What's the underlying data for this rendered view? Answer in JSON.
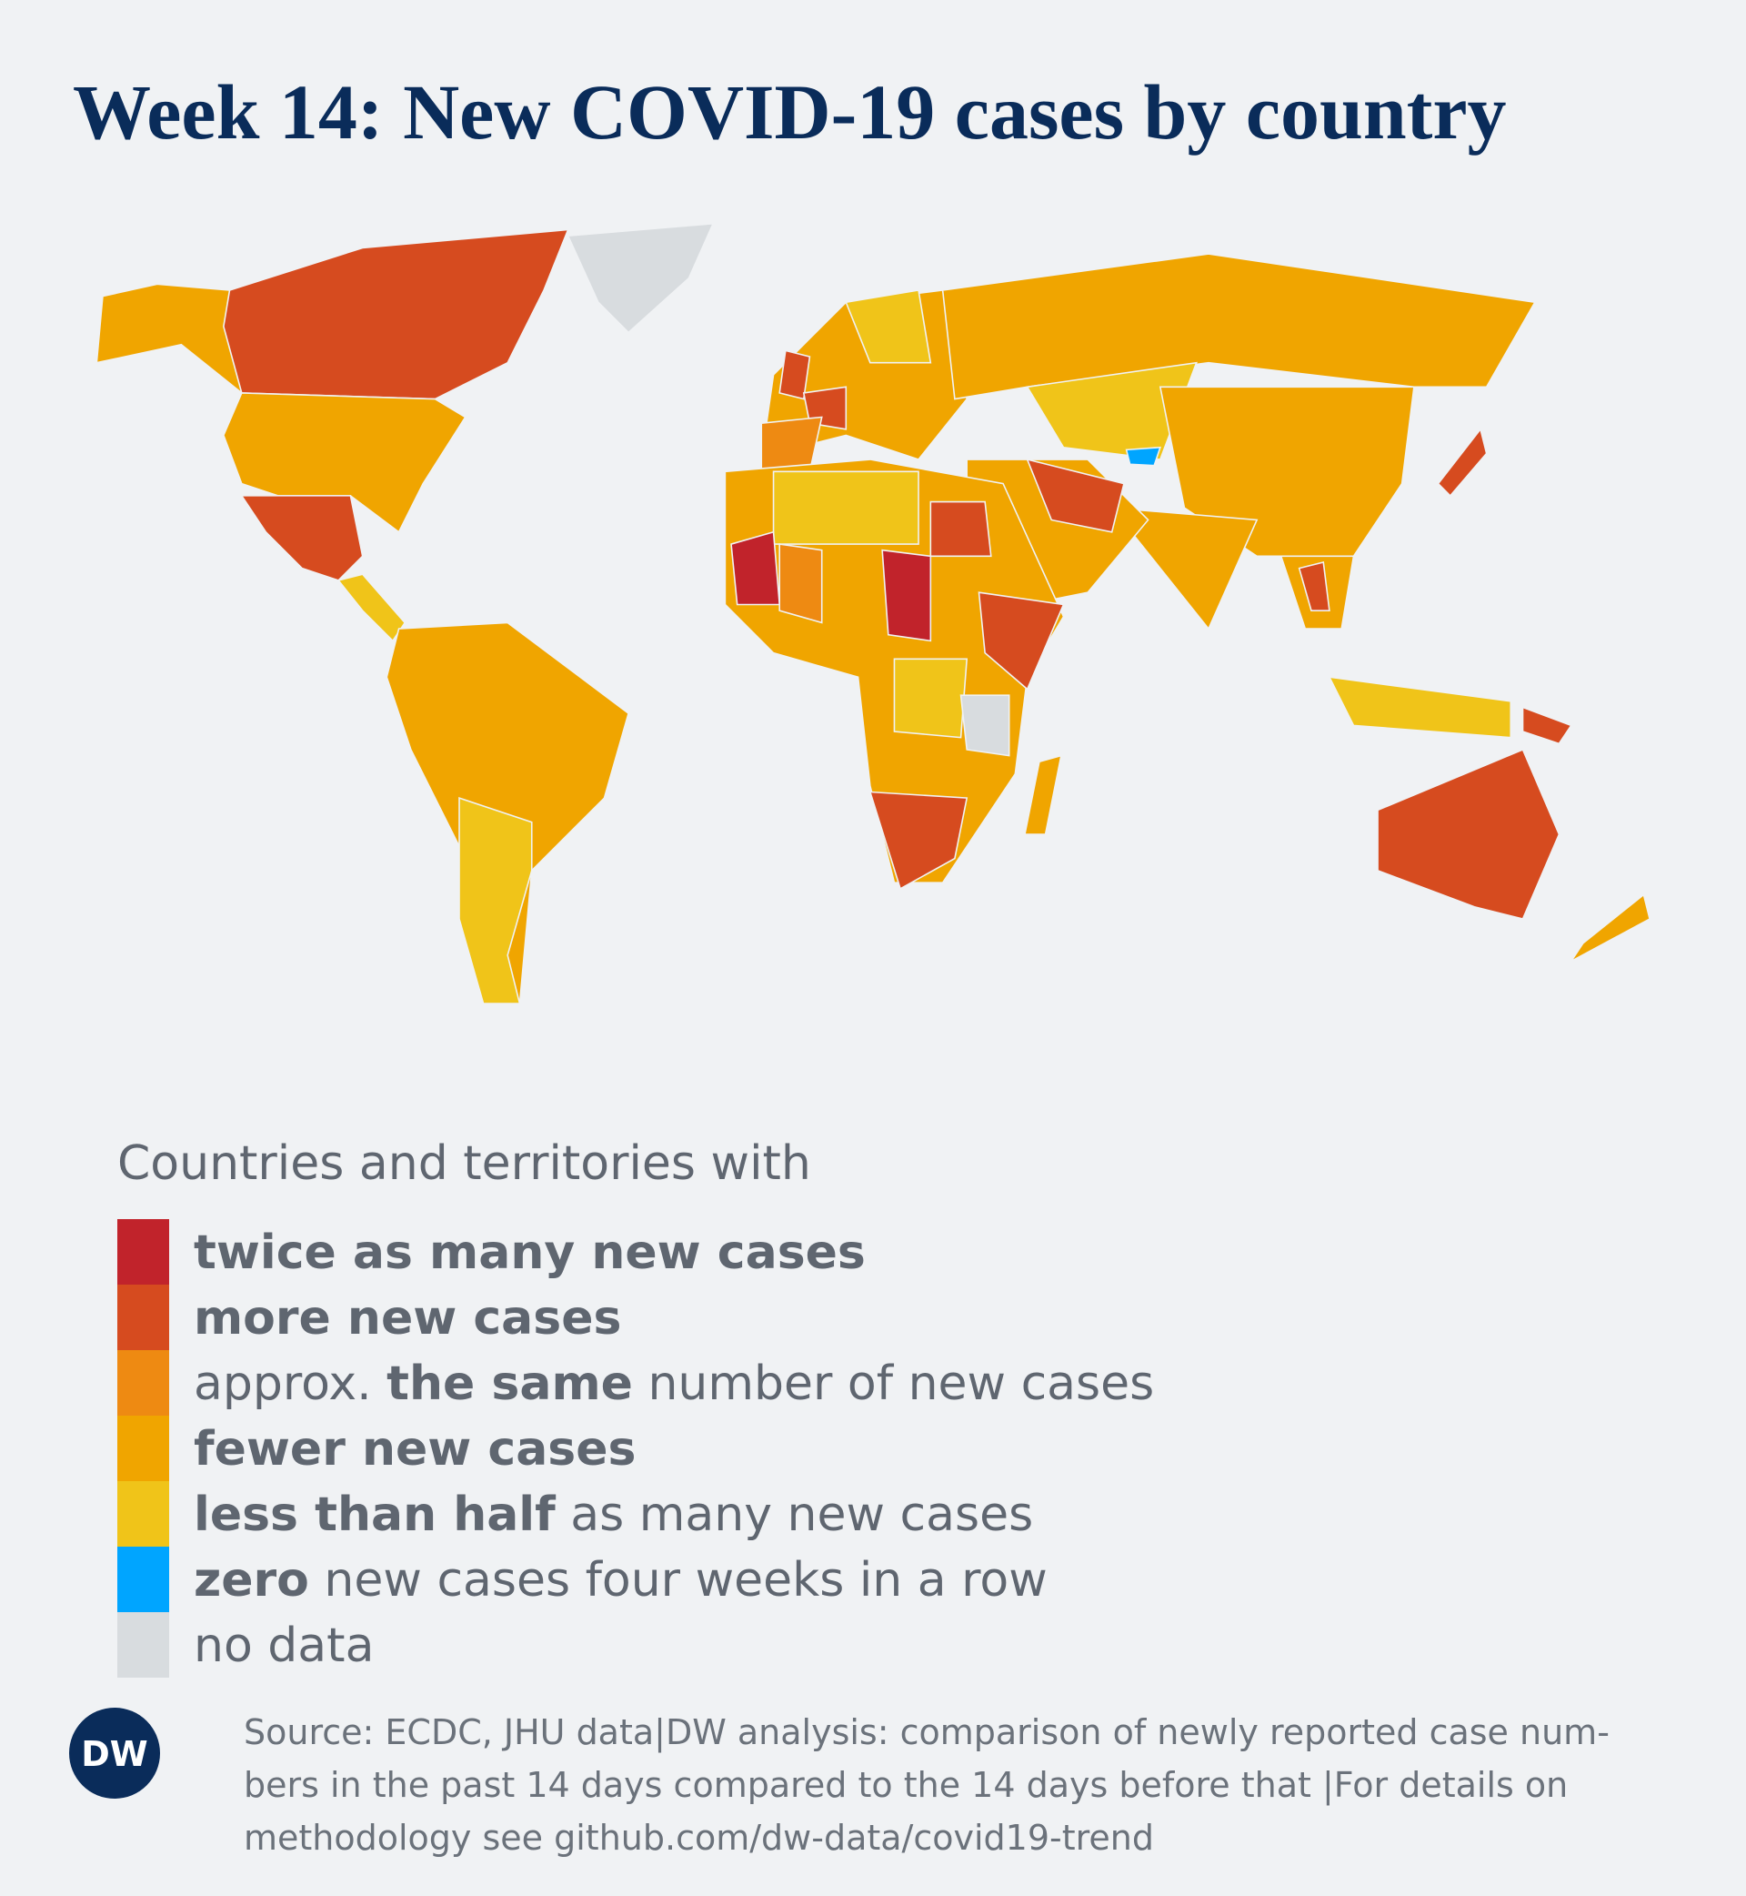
{
  "title": "Week 14: New COVID-19 cases by country",
  "legend": {
    "heading": "Countries and territories with",
    "items": [
      {
        "color": "#c1232b",
        "parts": [
          {
            "text": "twice as many new cases",
            "bold": true
          }
        ]
      },
      {
        "color": "#d64b1f",
        "parts": [
          {
            "text": "more new cases",
            "bold": true
          }
        ]
      },
      {
        "color": "#ee8a12",
        "parts": [
          {
            "text": "approx. ",
            "bold": false
          },
          {
            "text": "the same",
            "bold": true
          },
          {
            "text": " number of new cases",
            "bold": false
          }
        ]
      },
      {
        "color": "#f0a500",
        "parts": [
          {
            "text": "fewer new cases",
            "bold": true
          }
        ]
      },
      {
        "color": "#f0c419",
        "parts": [
          {
            "text": "less than half",
            "bold": true
          },
          {
            "text": " as many new cases",
            "bold": false
          }
        ]
      },
      {
        "color": "#00a5ff",
        "parts": [
          {
            "text": "zero",
            "bold": true
          },
          {
            "text": " new cases four weeks in a row",
            "bold": false
          }
        ]
      },
      {
        "color": "#d8dcdf",
        "parts": [
          {
            "text": "no data",
            "bold": false
          }
        ]
      }
    ]
  },
  "source": {
    "lines": [
      "Source: ECDC, JHU data|DW analysis: comparison of newly reported case num-",
      "bers in the past 14 days compared to the 14 days before that |For details on",
      "methodology see github.com/dw-data/covid19-trend"
    ]
  },
  "logo": "DW"
}
